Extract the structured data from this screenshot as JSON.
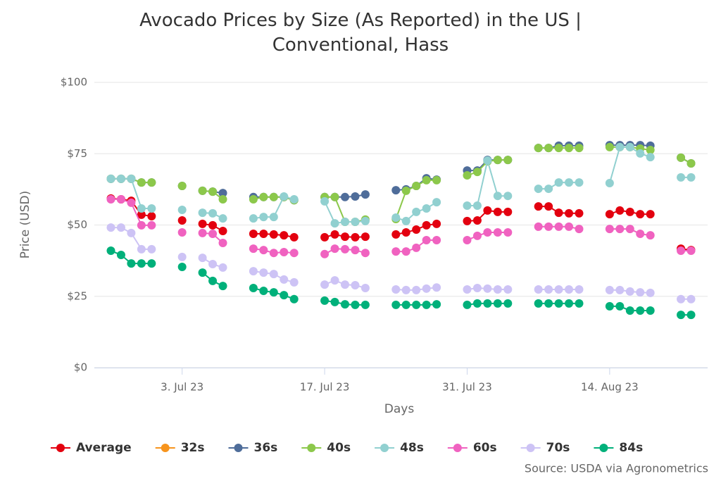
{
  "chart_data": {
    "type": "line",
    "title": "Avocado Prices by Size (As Reported) in the US | Conventional, Hass",
    "x_label": "Days",
    "y_label": "Price (USD)",
    "source": "Source: USDA via Agronometrics",
    "grid": true,
    "legend": "bottom",
    "xlim": [
      "2023-06-24T09:00",
      "2023-08-23T15:00"
    ],
    "xticks": [
      {
        "value": "2023-07-03",
        "label": "3. Jul 23"
      },
      {
        "value": "2023-07-17",
        "label": "17. Jul 23"
      },
      {
        "value": "2023-07-31",
        "label": "31. Jul 23"
      },
      {
        "value": "2023-08-14",
        "label": "14. Aug 23"
      }
    ],
    "ylim": [
      0,
      100
    ],
    "yticks": [
      {
        "value": 0,
        "label": "$0"
      },
      {
        "value": 25,
        "label": "$25"
      },
      {
        "value": 50,
        "label": "$50"
      },
      {
        "value": 75,
        "label": "$75"
      },
      {
        "value": 100,
        "label": "$100"
      }
    ],
    "x": [
      "2023-06-26",
      "2023-06-27",
      "2023-06-28",
      "2023-06-29",
      "2023-06-30",
      "2023-07-01",
      "2023-07-03",
      "2023-07-04",
      "2023-07-05",
      "2023-07-06",
      "2023-07-07",
      "2023-07-08",
      "2023-07-10",
      "2023-07-11",
      "2023-07-12",
      "2023-07-13",
      "2023-07-14",
      "2023-07-15",
      "2023-07-17",
      "2023-07-18",
      "2023-07-19",
      "2023-07-20",
      "2023-07-21",
      "2023-07-22",
      "2023-07-24",
      "2023-07-25",
      "2023-07-26",
      "2023-07-27",
      "2023-07-28",
      "2023-07-29",
      "2023-07-31",
      "2023-08-01",
      "2023-08-02",
      "2023-08-03",
      "2023-08-04",
      "2023-08-05",
      "2023-08-07",
      "2023-08-08",
      "2023-08-09",
      "2023-08-10",
      "2023-08-11",
      "2023-08-12",
      "2023-08-14",
      "2023-08-15",
      "2023-08-16",
      "2023-08-17",
      "2023-08-18",
      "2023-08-19",
      "2023-08-21",
      "2023-08-22"
    ],
    "series": [
      {
        "name": "Average",
        "color": "#e3000f",
        "values": [
          59.3,
          59.0,
          58.5,
          53.6,
          53.1,
          null,
          51.6,
          null,
          50.4,
          49.9,
          47.9,
          null,
          46.9,
          46.9,
          46.7,
          46.4,
          45.7,
          null,
          45.7,
          46.7,
          45.9,
          45.7,
          45.9,
          null,
          46.7,
          47.4,
          48.4,
          49.9,
          50.4,
          null,
          51.4,
          51.6,
          55.1,
          54.6,
          54.6,
          null,
          56.5,
          56.5,
          54.3,
          54.1,
          54.1,
          null,
          53.8,
          55.1,
          54.6,
          53.8,
          53.8,
          null,
          41.7,
          41.2
        ]
      },
      {
        "name": "32s",
        "color": "#f7941d",
        "values": [
          null,
          null,
          null,
          null,
          null,
          null,
          null,
          null,
          null,
          null,
          null,
          null,
          null,
          null,
          null,
          null,
          null,
          null,
          null,
          null,
          null,
          null,
          null,
          null,
          null,
          null,
          null,
          null,
          null,
          null,
          null,
          null,
          null,
          null,
          null,
          null,
          null,
          null,
          null,
          null,
          null,
          null,
          null,
          null,
          null,
          null,
          null,
          null,
          null,
          null
        ]
      },
      {
        "name": "36s",
        "color": "#4f6d9a",
        "values": [
          66.2,
          66.2,
          66.2,
          64.9,
          64.9,
          null,
          63.7,
          null,
          62.0,
          61.7,
          61.2,
          null,
          59.8,
          59.8,
          59.8,
          59.8,
          58.7,
          null,
          59.8,
          59.8,
          59.8,
          60.0,
          60.7,
          null,
          62.2,
          62.5,
          63.7,
          66.4,
          65.9,
          null,
          69.1,
          69.1,
          72.8,
          72.8,
          72.8,
          null,
          77.0,
          77.0,
          77.8,
          77.8,
          77.8,
          null,
          78.0,
          78.0,
          78.0,
          78.0,
          77.8,
          null,
          73.6,
          71.6
        ]
      },
      {
        "name": "40s",
        "color": "#8cc84b",
        "values": [
          66.2,
          66.2,
          66.2,
          64.9,
          64.9,
          null,
          63.7,
          null,
          62.0,
          61.7,
          59.0,
          null,
          59.0,
          59.8,
          59.8,
          59.8,
          58.7,
          null,
          59.8,
          59.8,
          51.1,
          51.1,
          51.9,
          null,
          52.1,
          62.0,
          63.7,
          65.7,
          65.7,
          null,
          67.4,
          68.6,
          72.3,
          72.8,
          72.8,
          null,
          77.0,
          77.0,
          77.0,
          77.0,
          77.0,
          null,
          77.3,
          77.3,
          77.3,
          76.8,
          76.3,
          null,
          73.6,
          71.6
        ]
      },
      {
        "name": "48s",
        "color": "#91d0d0",
        "values": [
          66.2,
          66.2,
          66.2,
          55.8,
          55.8,
          null,
          55.3,
          null,
          54.3,
          54.1,
          52.3,
          null,
          52.3,
          52.8,
          52.8,
          60.0,
          59.0,
          null,
          58.3,
          50.6,
          51.1,
          51.1,
          51.4,
          null,
          52.6,
          51.4,
          54.6,
          55.8,
          58.0,
          null,
          56.8,
          56.8,
          72.6,
          60.2,
          60.2,
          null,
          62.7,
          62.7,
          64.9,
          64.9,
          64.9,
          null,
          64.7,
          77.3,
          77.3,
          75.1,
          73.8,
          null,
          66.7,
          66.7
        ]
      },
      {
        "name": "60s",
        "color": "#f062c0",
        "values": [
          59.0,
          59.0,
          57.8,
          49.9,
          49.9,
          null,
          47.4,
          null,
          47.2,
          46.9,
          43.7,
          null,
          41.7,
          41.2,
          40.2,
          40.5,
          40.2,
          null,
          39.8,
          41.7,
          41.5,
          41.2,
          40.2,
          null,
          40.7,
          40.7,
          42.0,
          44.7,
          44.7,
          null,
          44.7,
          46.2,
          47.4,
          47.4,
          47.4,
          null,
          49.4,
          49.4,
          49.4,
          49.4,
          48.6,
          null,
          48.6,
          48.6,
          48.6,
          46.9,
          46.4,
          null,
          41.0,
          41.0
        ]
      },
      {
        "name": "70s",
        "color": "#cdc3f5",
        "values": [
          49.1,
          49.1,
          47.2,
          41.5,
          41.5,
          null,
          38.8,
          null,
          38.5,
          36.3,
          35.1,
          null,
          33.8,
          33.3,
          32.8,
          30.9,
          29.9,
          null,
          29.1,
          30.6,
          29.1,
          28.9,
          27.9,
          null,
          27.4,
          27.2,
          27.2,
          27.7,
          28.1,
          null,
          27.4,
          27.9,
          27.7,
          27.4,
          27.4,
          null,
          27.4,
          27.4,
          27.4,
          27.4,
          27.4,
          null,
          27.2,
          27.2,
          26.7,
          26.4,
          26.2,
          null,
          24.0,
          24.0
        ]
      },
      {
        "name": "84s",
        "color": "#00b07a",
        "values": [
          41.0,
          39.5,
          36.5,
          36.5,
          36.5,
          null,
          35.3,
          null,
          33.3,
          30.4,
          28.6,
          null,
          27.9,
          26.9,
          26.4,
          25.4,
          24.0,
          null,
          23.5,
          23.0,
          22.2,
          22.0,
          22.0,
          null,
          22.0,
          22.0,
          22.0,
          22.0,
          22.2,
          null,
          22.0,
          22.5,
          22.5,
          22.5,
          22.5,
          null,
          22.5,
          22.5,
          22.5,
          22.5,
          22.5,
          null,
          21.5,
          21.5,
          20.0,
          20.0,
          20.0,
          null,
          18.5,
          18.5
        ]
      }
    ]
  }
}
